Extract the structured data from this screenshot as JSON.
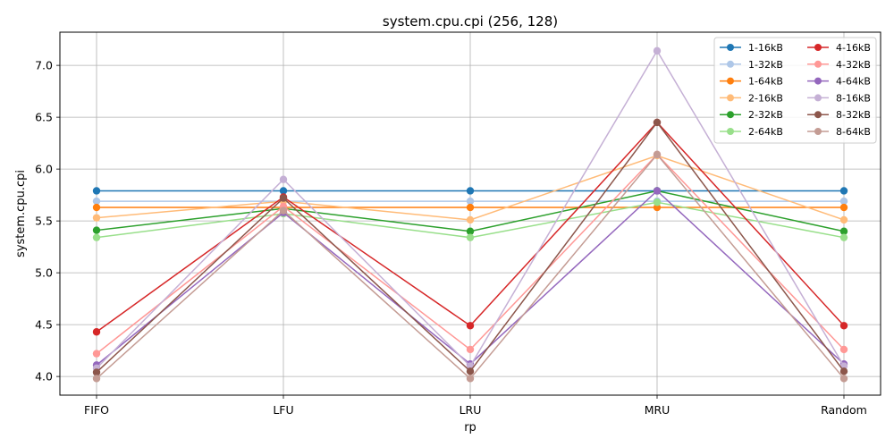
{
  "chart_data": {
    "type": "line",
    "title": "system.cpu.cpi (256, 128)",
    "xlabel": "rp",
    "ylabel": "system.cpu.cpi",
    "categories": [
      "FIFO",
      "LFU",
      "LRU",
      "MRU",
      "Random"
    ],
    "ylim": [
      3.82,
      7.32
    ],
    "yticks": [
      4.0,
      4.5,
      5.0,
      5.5,
      6.0,
      6.5,
      7.0
    ],
    "ytick_labels": [
      "4.0",
      "4.5",
      "5.0",
      "5.5",
      "6.0",
      "6.5",
      "7.0"
    ],
    "grid": true,
    "legend_position": "top-right",
    "series": [
      {
        "name": "1-16kB",
        "color": "#1f77b4",
        "values": [
          5.79,
          5.79,
          5.79,
          5.79,
          5.79
        ]
      },
      {
        "name": "1-32kB",
        "color": "#aec7e8",
        "values": [
          5.69,
          5.69,
          5.69,
          5.69,
          5.69
        ]
      },
      {
        "name": "1-64kB",
        "color": "#ff7f0e",
        "values": [
          5.63,
          5.63,
          5.63,
          5.63,
          5.63
        ]
      },
      {
        "name": "2-16kB",
        "color": "#ffbb78",
        "values": [
          5.53,
          5.69,
          5.51,
          6.13,
          5.51
        ]
      },
      {
        "name": "2-32kB",
        "color": "#2ca02c",
        "values": [
          5.41,
          5.62,
          5.4,
          5.79,
          5.4
        ]
      },
      {
        "name": "2-64kB",
        "color": "#98df8a",
        "values": [
          5.34,
          5.57,
          5.34,
          5.68,
          5.34
        ]
      },
      {
        "name": "4-16kB",
        "color": "#d62728",
        "values": [
          4.43,
          5.73,
          4.49,
          6.45,
          4.49
        ]
      },
      {
        "name": "4-32kB",
        "color": "#ff9896",
        "values": [
          4.22,
          5.64,
          4.26,
          6.14,
          4.26
        ]
      },
      {
        "name": "4-64kB",
        "color": "#9467bd",
        "values": [
          4.11,
          5.58,
          4.12,
          5.79,
          4.12
        ]
      },
      {
        "name": "8-16kB",
        "color": "#c5b0d5",
        "values": [
          4.08,
          5.9,
          4.1,
          7.14,
          4.1
        ]
      },
      {
        "name": "8-32kB",
        "color": "#8c564b",
        "values": [
          4.04,
          5.72,
          4.05,
          6.45,
          4.05
        ]
      },
      {
        "name": "8-64kB",
        "color": "#c49c94",
        "values": [
          3.98,
          5.6,
          3.98,
          6.14,
          3.98
        ]
      }
    ]
  }
}
